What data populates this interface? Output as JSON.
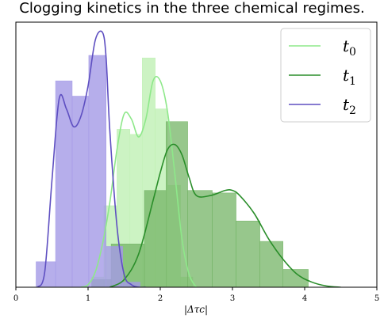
{
  "chart_data": {
    "type": "histogram_kde",
    "title": "Clogging kinetics in the three chemical regimes.",
    "xlabel": "|Δτc|",
    "xlim": [
      0,
      5
    ],
    "x_ticks": [
      "0",
      "1",
      "2",
      "3",
      "4",
      "5"
    ],
    "y_ticks_visible": false,
    "legend_position": "top-right",
    "series": [
      {
        "name": "t0",
        "label_main": "t",
        "label_sub": "0",
        "hist_color": "#bff0b4",
        "line_color": "#8ee88a",
        "bins": [
          {
            "x0": 1.05,
            "x1": 1.22,
            "h": 0.04
          },
          {
            "x0": 1.22,
            "x1": 1.4,
            "h": 0.32
          },
          {
            "x0": 1.4,
            "x1": 1.58,
            "h": 0.62
          },
          {
            "x0": 1.58,
            "x1": 1.75,
            "h": 0.6
          },
          {
            "x0": 1.75,
            "x1": 1.93,
            "h": 0.9
          },
          {
            "x0": 1.93,
            "x1": 2.1,
            "h": 0.7
          },
          {
            "x0": 2.1,
            "x1": 2.28,
            "h": 0.4
          },
          {
            "x0": 2.28,
            "x1": 2.45,
            "h": 0.04
          }
        ],
        "kde_x": [
          0.9,
          1.0,
          1.1,
          1.2,
          1.3,
          1.4,
          1.5,
          1.6,
          1.7,
          1.8,
          1.9,
          2.0,
          2.1,
          2.2,
          2.3,
          2.4,
          2.5
        ],
        "kde_y": [
          0.0,
          0.01,
          0.06,
          0.17,
          0.33,
          0.54,
          0.68,
          0.66,
          0.59,
          0.66,
          0.81,
          0.81,
          0.69,
          0.45,
          0.19,
          0.05,
          0.0
        ]
      },
      {
        "name": "t1",
        "label_main": "t",
        "label_sub": "1",
        "hist_color": "#74b466",
        "line_color": "#2a8e2a",
        "bins": [
          {
            "x0": 1.05,
            "x1": 1.32,
            "h": 0.03
          },
          {
            "x0": 1.32,
            "x1": 1.78,
            "h": 0.17
          },
          {
            "x0": 1.78,
            "x1": 2.08,
            "h": 0.38
          },
          {
            "x0": 2.08,
            "x1": 2.38,
            "h": 0.65
          },
          {
            "x0": 2.38,
            "x1": 2.72,
            "h": 0.38
          },
          {
            "x0": 2.72,
            "x1": 3.05,
            "h": 0.37
          },
          {
            "x0": 3.05,
            "x1": 3.38,
            "h": 0.26
          },
          {
            "x0": 3.38,
            "x1": 3.7,
            "h": 0.18
          },
          {
            "x0": 3.7,
            "x1": 4.05,
            "h": 0.07
          }
        ],
        "kde_x": [
          1.3,
          1.5,
          1.7,
          1.9,
          2.0,
          2.1,
          2.2,
          2.3,
          2.4,
          2.5,
          2.7,
          2.9,
          3.0,
          3.1,
          3.3,
          3.5,
          3.7,
          3.9,
          4.1,
          4.3,
          4.5
        ],
        "kde_y": [
          0.0,
          0.03,
          0.13,
          0.34,
          0.45,
          0.54,
          0.56,
          0.52,
          0.43,
          0.36,
          0.36,
          0.38,
          0.38,
          0.36,
          0.29,
          0.19,
          0.11,
          0.05,
          0.02,
          0.005,
          0.0
        ]
      },
      {
        "name": "t2",
        "label_main": "t",
        "label_sub": "2",
        "hist_color": "#a49ae6",
        "line_color": "#5e4fc1",
        "bins": [
          {
            "x0": 0.28,
            "x1": 0.55,
            "h": 0.1
          },
          {
            "x0": 0.55,
            "x1": 0.78,
            "h": 0.81
          },
          {
            "x0": 0.78,
            "x1": 1.01,
            "h": 0.75
          },
          {
            "x0": 1.01,
            "x1": 1.25,
            "h": 0.91
          },
          {
            "x0": 1.25,
            "x1": 1.48,
            "h": 0.16
          },
          {
            "x0": 1.48,
            "x1": 1.72,
            "h": 0.02
          }
        ],
        "kde_x": [
          0.3,
          0.4,
          0.5,
          0.6,
          0.7,
          0.8,
          0.9,
          1.0,
          1.1,
          1.2,
          1.25,
          1.3,
          1.4,
          1.5,
          1.6,
          1.7,
          1.8
        ],
        "kde_y": [
          0.0,
          0.06,
          0.42,
          0.74,
          0.7,
          0.63,
          0.67,
          0.79,
          0.97,
          1.0,
          0.9,
          0.62,
          0.24,
          0.05,
          0.01,
          0.0,
          0.0
        ]
      }
    ]
  }
}
